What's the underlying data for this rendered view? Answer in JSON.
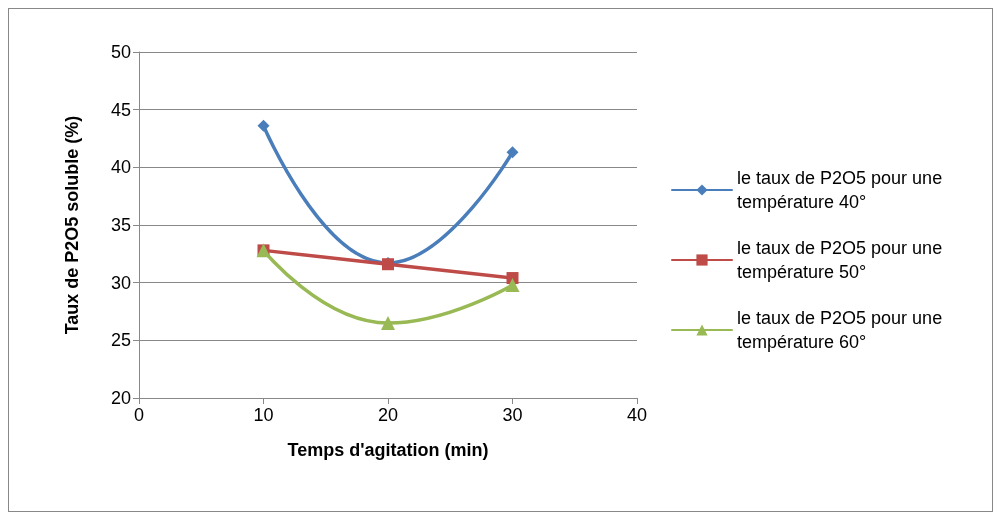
{
  "chart_data": {
    "type": "line",
    "xlabel": "Temps d'agitation (min)",
    "ylabel": "Taux de P2O5 soluble (%)",
    "x": [
      10,
      20,
      30
    ],
    "series": [
      {
        "name": "le taux de P2O5 pour une température 40°",
        "color": "#4a7ebb",
        "values": [
          43.6,
          31.7,
          41.3
        ],
        "marker": "diamond"
      },
      {
        "name": "le taux de P2O5 pour une température 50°",
        "color": "#be4b48",
        "values": [
          32.8,
          31.6,
          30.4
        ],
        "marker": "square"
      },
      {
        "name": "le taux de P2O5 pour une température 60°",
        "color": "#98b954",
        "values": [
          32.8,
          26.5,
          29.8
        ],
        "marker": "triangle"
      }
    ],
    "xlim": [
      0,
      40
    ],
    "xticks": [
      0,
      10,
      20,
      30,
      40
    ],
    "ylim": [
      20,
      50
    ],
    "yticks": [
      20,
      25,
      30,
      35,
      40,
      45,
      50
    ],
    "grid": "y",
    "legend": "right",
    "line_style": "solid"
  }
}
